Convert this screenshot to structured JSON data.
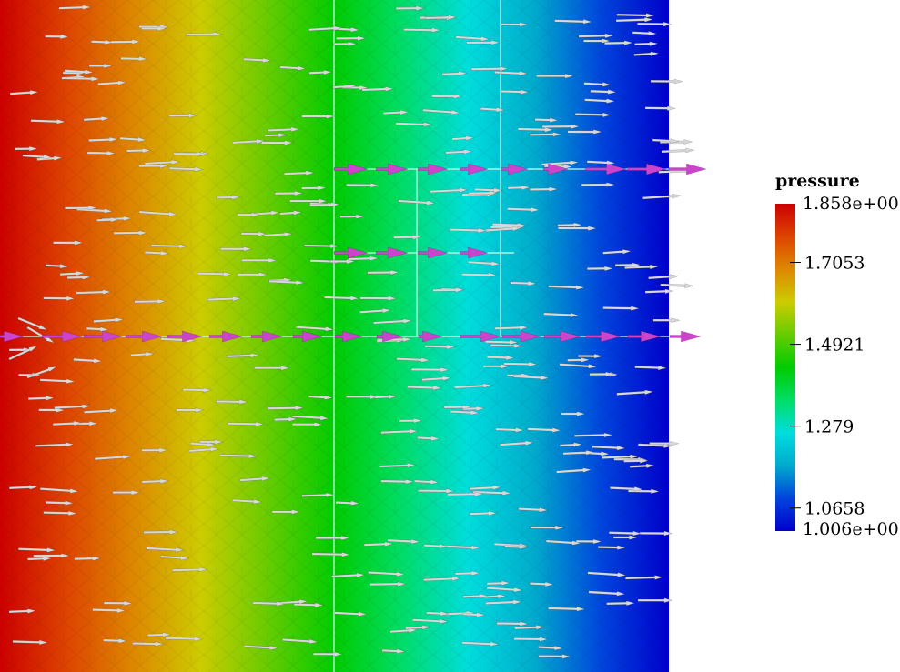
{
  "legend": {
    "title": "pressure",
    "max_label": "1.858e+00",
    "min_label": "1.006e+00",
    "min": 1.006,
    "max": 1.858,
    "ticks": [
      {
        "value": 1.7053,
        "label": "1.7053"
      },
      {
        "value": 1.4921,
        "label": "1.4921"
      },
      {
        "value": 1.279,
        "label": "1.279"
      },
      {
        "value": 1.0658,
        "label": "1.0658"
      }
    ]
  },
  "colors": {
    "colormap": [
      "#0000cc",
      "#0044dd",
      "#00aacc",
      "#00dddd",
      "#00dd66",
      "#00cc00",
      "#66cc00",
      "#cccc00",
      "#dd8800",
      "#dd4400",
      "#cc0000"
    ],
    "fracture_arrows": "#cc44cc",
    "matrix_arrows": "#d8d8d8",
    "fracture_lines": "#ccffee"
  }
}
